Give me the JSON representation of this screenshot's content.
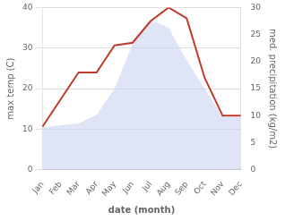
{
  "chart_data": {
    "type": "line",
    "xlabel": "date (month)",
    "ylabel": "max temp (C)",
    "y2label": "med. precipitation (kg/m2)",
    "categories": [
      "Jan",
      "Feb",
      "Mar",
      "Apr",
      "May",
      "Jun",
      "Jul",
      "Aug",
      "Sep",
      "Oct",
      "Nov",
      "Dec"
    ],
    "series": [
      {
        "type": "area",
        "color": "#c5cdf0",
        "values": [
          10.5,
          11.0,
          11.5,
          13.5,
          20.0,
          31.0,
          37.0,
          35.0,
          27.0,
          20.0,
          13.0,
          13.0
        ]
      },
      {
        "type": "line",
        "color": "#c0392b",
        "axis": "y2",
        "values": [
          8.0,
          13.0,
          18.0,
          18.0,
          23.0,
          23.5,
          27.5,
          30.0,
          28.0,
          17.0,
          10.0,
          10.0
        ]
      }
    ],
    "ylim": [
      0,
      40
    ],
    "yticks": [
      0,
      10,
      20,
      30,
      40
    ],
    "y2lim": [
      0,
      30
    ],
    "y2ticks": [
      0,
      5,
      10,
      15,
      20,
      25,
      30
    ],
    "grid": true
  }
}
